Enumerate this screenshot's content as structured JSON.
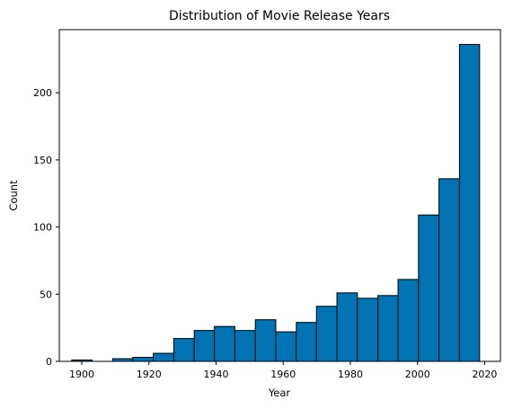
{
  "chart_data": {
    "type": "bar",
    "title": "Distribution of Movie Release Years",
    "xlabel": "Year",
    "ylabel": "Count",
    "xlim": [
      1893.3,
      2024.7
    ],
    "ylim": [
      0,
      247
    ],
    "xticks": [
      1900,
      1920,
      1940,
      1960,
      1980,
      2000,
      2020
    ],
    "yticks": [
      0,
      50,
      100,
      150,
      200
    ],
    "bins": [
      {
        "start": 1897.0,
        "end": 1903.1,
        "count": 1
      },
      {
        "start": 1903.1,
        "end": 1909.2,
        "count": 0
      },
      {
        "start": 1909.2,
        "end": 1915.2,
        "count": 2
      },
      {
        "start": 1915.2,
        "end": 1921.3,
        "count": 3
      },
      {
        "start": 1921.3,
        "end": 1927.4,
        "count": 6
      },
      {
        "start": 1927.4,
        "end": 1933.5,
        "count": 17
      },
      {
        "start": 1933.5,
        "end": 1939.5,
        "count": 23
      },
      {
        "start": 1939.5,
        "end": 1945.6,
        "count": 26
      },
      {
        "start": 1945.6,
        "end": 1951.7,
        "count": 23
      },
      {
        "start": 1951.7,
        "end": 1957.8,
        "count": 31
      },
      {
        "start": 1957.8,
        "end": 1963.9,
        "count": 22
      },
      {
        "start": 1963.9,
        "end": 1969.9,
        "count": 29
      },
      {
        "start": 1969.9,
        "end": 1976.0,
        "count": 41
      },
      {
        "start": 1976.0,
        "end": 1982.1,
        "count": 51
      },
      {
        "start": 1982.1,
        "end": 1988.2,
        "count": 47
      },
      {
        "start": 1988.2,
        "end": 1994.2,
        "count": 49
      },
      {
        "start": 1994.2,
        "end": 2000.3,
        "count": 61
      },
      {
        "start": 2000.3,
        "end": 2006.4,
        "count": 109
      },
      {
        "start": 2006.4,
        "end": 2012.5,
        "count": 136
      },
      {
        "start": 2012.5,
        "end": 2018.5,
        "count": 236
      }
    ],
    "bar_color": "#0173b2",
    "edge_color": "#000000",
    "grid": false,
    "legend": "none"
  }
}
